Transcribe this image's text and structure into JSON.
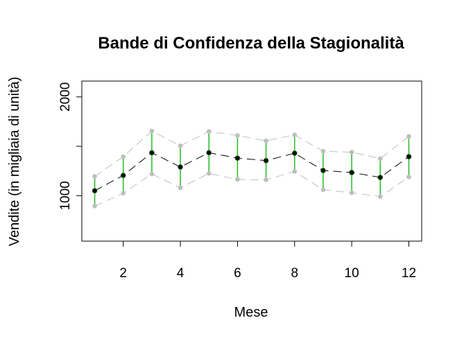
{
  "chart_data": {
    "type": "line",
    "title": "Bande di Confidenza della Stagionalità",
    "xlabel": "Mese",
    "ylabel": "Vendite (in migliaia di unità)",
    "x": [
      1,
      2,
      3,
      4,
      5,
      6,
      7,
      8,
      9,
      10,
      11,
      12
    ],
    "xlim": [
      0.55,
      12.45
    ],
    "ylim": [
      540,
      2160
    ],
    "x_ticks": [
      2,
      4,
      6,
      8,
      10,
      12
    ],
    "y_ticks": [
      1000,
      1500,
      2000
    ],
    "y_tick_labels": [
      "1000",
      "",
      "2000"
    ],
    "series": [
      {
        "name": "",
        "role": "mean",
        "color": "#000000",
        "values": [
          1050,
          1205,
          1435,
          1290,
          1435,
          1380,
          1355,
          1430,
          1255,
          1235,
          1185,
          1395
        ]
      },
      {
        "name": "",
        "role": "upper",
        "color": "#bebebe",
        "values": [
          1195,
          1395,
          1655,
          1505,
          1650,
          1610,
          1555,
          1615,
          1450,
          1440,
          1375,
          1600
        ]
      },
      {
        "name": "",
        "role": "lower",
        "color": "#bebebe",
        "values": [
          895,
          1025,
          1220,
          1080,
          1225,
          1165,
          1160,
          1245,
          1060,
          1030,
          990,
          1190
        ]
      }
    ],
    "interval_color": "#22bb22",
    "grid": false,
    "legend": "none"
  }
}
